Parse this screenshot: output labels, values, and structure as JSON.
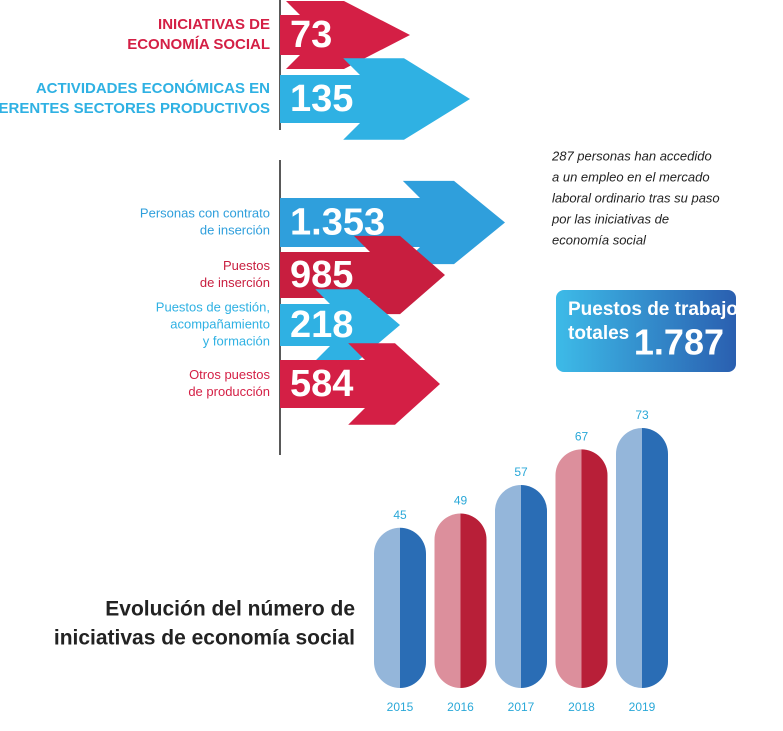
{
  "arrows_top": [
    {
      "label": [
        "INICIATIVAS DE",
        "ECONOMÍA SOCIAL"
      ],
      "value": "73",
      "color": "#d41f45"
    },
    {
      "label": [
        "ACTIVIDADES ECONÓMICAS EN",
        "DIFERENTES SECTORES PRODUCTIVOS"
      ],
      "value": "135",
      "color": "#2fb1e3"
    }
  ],
  "arrows_bottom": [
    {
      "label": [
        "Personas con contrato",
        "de inserción"
      ],
      "value": "1.353",
      "color": "#2f9fdc"
    },
    {
      "label": [
        "Puestos",
        "de inserción"
      ],
      "value": "985",
      "color": "#c81e3f"
    },
    {
      "label": [
        "Puestos de gestión,",
        "acompañamiento",
        "y formación"
      ],
      "value": "218",
      "color": "#2fb1e3"
    },
    {
      "label": [
        "Otros puestos",
        "de producción"
      ],
      "value": "584",
      "color": "#d41f45"
    }
  ],
  "note": [
    "287 personas han accedido",
    "a un empleo en el mercado",
    "laboral ordinario tras su paso",
    "por las iniciativas de",
    "economía social"
  ],
  "total_box": {
    "label": [
      "Puestos de trabajo",
      "totales"
    ],
    "value": "1.787"
  },
  "chart_data": {
    "type": "bar",
    "title": [
      "Evolución del número de",
      "iniciativas de economía social"
    ],
    "categories": [
      "2015",
      "2016",
      "2017",
      "2018",
      "2019"
    ],
    "values": [
      45,
      49,
      57,
      67,
      73
    ],
    "colors": [
      "#2a6db5",
      "#b81f38",
      "#2a6db5",
      "#b81f38",
      "#2a6db5"
    ],
    "label_color": "#2aa8d8"
  }
}
